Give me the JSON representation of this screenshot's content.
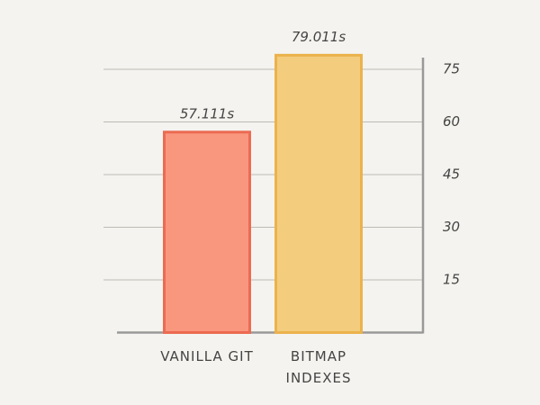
{
  "chart_data": {
    "type": "bar",
    "categories": [
      "VANILLA GIT",
      "BITMAP INDEXES"
    ],
    "values": [
      57.111,
      79.011
    ],
    "value_labels": [
      "57.111s",
      "79.011s"
    ],
    "colors": [
      "#f9967e",
      "#f3cd7d"
    ],
    "ylim": [
      0,
      80
    ],
    "yticks": [
      15,
      30,
      45,
      60,
      75
    ],
    "grid": true
  }
}
